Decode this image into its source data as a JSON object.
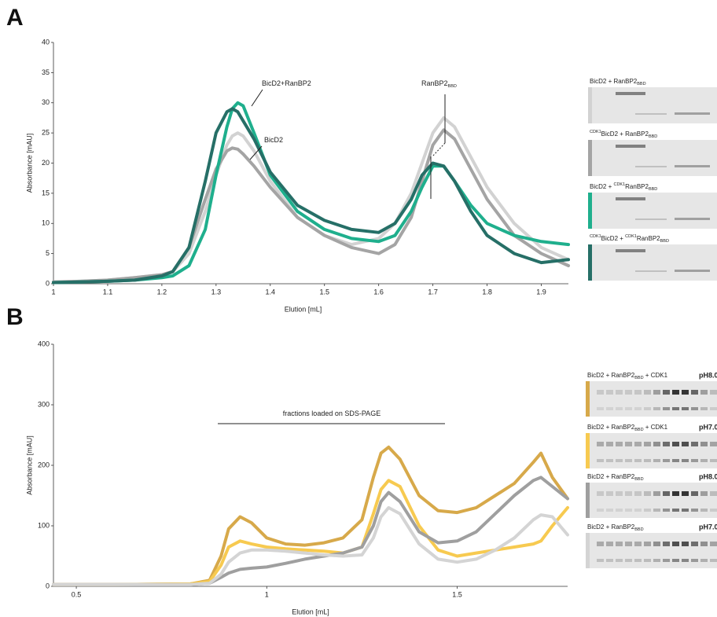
{
  "chart_data": [
    {
      "type": "line",
      "panel": "A",
      "xlabel": "Elution [mL]",
      "ylabel": "Absorbance [mAU]",
      "xlim": [
        1,
        1.95
      ],
      "ylim": [
        0,
        40
      ],
      "xticks": [
        1,
        1.1,
        1.2,
        1.3,
        1.4,
        1.5,
        1.6,
        1.7,
        1.8,
        1.9
      ],
      "yticks": [
        0,
        5,
        10,
        15,
        20,
        25,
        30,
        35,
        40
      ],
      "annotations": [
        [
          {
            "text": "BicD2+RanBP2"
          }
        ],
        [
          {
            "text": "BicD2"
          }
        ],
        [
          {
            "text": "RanBP2"
          },
          {
            "sub": "BBD"
          }
        ]
      ],
      "x": [
        1.0,
        1.05,
        1.1,
        1.15,
        1.2,
        1.22,
        1.25,
        1.28,
        1.3,
        1.32,
        1.33,
        1.34,
        1.35,
        1.37,
        1.4,
        1.45,
        1.5,
        1.55,
        1.6,
        1.63,
        1.66,
        1.68,
        1.7,
        1.72,
        1.74,
        1.77,
        1.8,
        1.85,
        1.9,
        1.95
      ],
      "series": [
        {
          "name": [
            {
              "text": "BicD2 + RanBP2"
            },
            {
              "sub": "BBD"
            }
          ],
          "color": "#d2d2d2",
          "values": [
            0.3,
            0.4,
            0.6,
            1,
            1.5,
            2,
            5,
            12,
            18,
            23,
            24.5,
            25,
            24.5,
            22,
            17,
            11,
            8,
            6.5,
            7.5,
            10,
            15,
            20,
            25,
            27.5,
            26,
            21,
            16,
            10,
            6,
            4
          ]
        },
        {
          "name": [
            {
              "sup": "CDK1"
            },
            {
              "text": "BicD2 + RanBP2"
            },
            {
              "sub": "BBD"
            }
          ],
          "color": "#a4a4a4",
          "values": [
            0.3,
            0.4,
            0.6,
            1,
            1.5,
            2,
            6,
            14,
            19,
            22,
            22.5,
            22.3,
            21.5,
            19.5,
            16,
            11,
            8,
            6,
            5,
            6.5,
            11,
            17,
            23,
            25.5,
            24,
            19,
            14,
            8,
            5,
            3
          ]
        },
        {
          "name": [
            {
              "text": "BicD2 + "
            },
            {
              "sup": "CDK1"
            },
            {
              "text": "RanBP2"
            },
            {
              "sub": "BBD"
            }
          ],
          "color": "#1faf8d",
          "values": [
            0.2,
            0.3,
            0.4,
            0.6,
            1,
            1.3,
            3,
            9,
            18,
            26,
            29,
            30,
            29.5,
            25,
            18,
            12,
            9,
            7.5,
            7,
            8,
            12,
            16,
            19.5,
            19.5,
            17,
            13,
            10,
            8,
            7,
            6.5
          ]
        },
        {
          "name": [
            {
              "sup": "CDK1"
            },
            {
              "text": "BicD2 + "
            },
            {
              "sup": "CDK1"
            },
            {
              "text": "RanBP2"
            },
            {
              "sub": "BBD"
            }
          ],
          "color": "#266f67",
          "values": [
            0.2,
            0.3,
            0.4,
            0.6,
            1.3,
            2,
            6,
            17,
            25,
            28.5,
            29,
            28.5,
            27,
            24,
            18.5,
            13,
            10.5,
            9,
            8.5,
            10,
            14,
            18,
            20,
            19.5,
            17,
            12,
            8,
            5,
            3.5,
            4
          ]
        }
      ]
    },
    {
      "type": "line",
      "panel": "B",
      "xlabel": "Elution [mL]",
      "ylabel": "Absorbance [mAU]",
      "xlim": [
        0.44,
        1.79
      ],
      "ylim": [
        0,
        400
      ],
      "xticks": [
        0.5,
        1,
        1.5
      ],
      "yticks": [
        0,
        100,
        200,
        300,
        400
      ],
      "annotations": [
        [
          {
            "text": "fractions loaded on SDS-PAGE"
          }
        ]
      ],
      "x": [
        0.44,
        0.6,
        0.8,
        0.85,
        0.88,
        0.9,
        0.93,
        0.96,
        1.0,
        1.05,
        1.1,
        1.15,
        1.2,
        1.25,
        1.28,
        1.3,
        1.32,
        1.35,
        1.4,
        1.45,
        1.5,
        1.55,
        1.6,
        1.65,
        1.7,
        1.72,
        1.75,
        1.79
      ],
      "series": [
        {
          "name": [
            {
              "text": "BicD2 + RanBP2"
            },
            {
              "sub": "BBD"
            },
            {
              "text": " + CDK1"
            }
          ],
          "ph": "pH8.0",
          "color": "#d7a94a",
          "values": [
            3,
            3,
            4,
            10,
            50,
            95,
            115,
            105,
            80,
            70,
            68,
            72,
            80,
            110,
            180,
            220,
            230,
            210,
            150,
            125,
            122,
            130,
            150,
            170,
            205,
            220,
            180,
            145
          ]
        },
        {
          "name": [
            {
              "text": "BicD2 + RanBP2"
            },
            {
              "sub": "BBD"
            },
            {
              "text": " + CDK1"
            }
          ],
          "ph": "pH7.0",
          "color": "#f7ca50",
          "values": [
            3,
            3,
            4,
            8,
            35,
            65,
            75,
            70,
            65,
            62,
            60,
            58,
            55,
            65,
            120,
            160,
            175,
            165,
            100,
            60,
            50,
            55,
            60,
            65,
            70,
            75,
            100,
            130
          ]
        },
        {
          "name": [
            {
              "text": "BicD2 + RanBP2"
            },
            {
              "sub": "BBD"
            }
          ],
          "ph": "pH8.0",
          "color": "#9f9f9f",
          "values": [
            3,
            3,
            3,
            5,
            15,
            22,
            28,
            30,
            32,
            38,
            45,
            50,
            55,
            65,
            100,
            140,
            155,
            140,
            90,
            72,
            75,
            90,
            120,
            150,
            175,
            180,
            165,
            145
          ]
        },
        {
          "name": [
            {
              "text": "BicD2 + RanBP2"
            },
            {
              "sub": "BBD"
            }
          ],
          "ph": "pH7.0",
          "color": "#d4d4d4",
          "values": [
            3,
            3,
            3,
            5,
            20,
            40,
            55,
            60,
            60,
            58,
            55,
            52,
            50,
            52,
            80,
            115,
            130,
            120,
            70,
            45,
            40,
            45,
            60,
            80,
            110,
            118,
            115,
            85
          ]
        }
      ]
    }
  ]
}
